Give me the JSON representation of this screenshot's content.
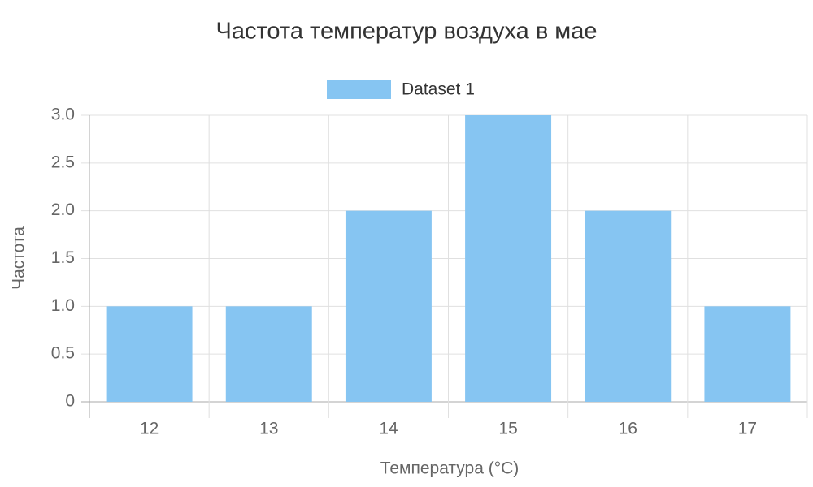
{
  "chart_data": {
    "type": "bar",
    "title": "Частота температур воздуха в мае",
    "x_label": "Температура (°C)",
    "y_label": "Частота",
    "categories": [
      "12",
      "13",
      "14",
      "15",
      "16",
      "17"
    ],
    "series": [
      {
        "name": "Dataset 1",
        "color": "#86c5f2",
        "values": [
          1,
          1,
          2,
          3,
          2,
          1
        ]
      }
    ],
    "ylim": [
      0,
      3
    ],
    "yticks": [
      0,
      0.5,
      {
        "value": 1,
        "label": "1.0"
      },
      1.5,
      {
        "value": 2,
        "label": "2.0"
      },
      2.5,
      {
        "value": 3,
        "label": "3.0"
      }
    ],
    "grid": true,
    "legend": "top"
  }
}
